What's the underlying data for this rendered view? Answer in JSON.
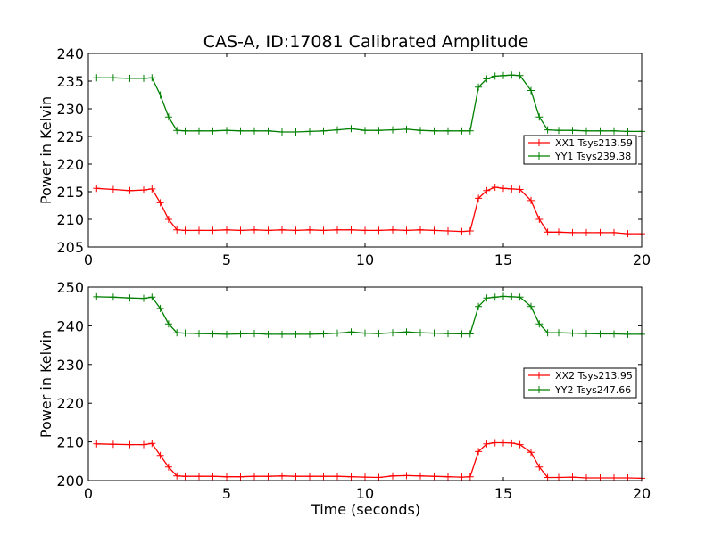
{
  "chart_data": [
    {
      "type": "line",
      "title": "CAS-A, ID:17081 Calibrated Amplitude",
      "xlabel": "",
      "ylabel": "Power in Kelvin",
      "xlim": [
        0,
        20
      ],
      "ylim": [
        205,
        240
      ],
      "xticks": [
        "0",
        "5",
        "10",
        "15",
        "20"
      ],
      "yticks": [
        "205",
        "210",
        "215",
        "220",
        "225",
        "230",
        "235",
        "240"
      ],
      "x": [
        0.3,
        0.9,
        1.5,
        2.0,
        2.3,
        2.6,
        2.9,
        3.2,
        3.5,
        4.0,
        4.5,
        5.0,
        5.5,
        6.0,
        6.5,
        7.0,
        7.5,
        8.0,
        8.5,
        9.0,
        9.5,
        10.0,
        10.5,
        11.0,
        11.5,
        12.0,
        12.5,
        13.0,
        13.5,
        13.8,
        14.1,
        14.4,
        14.7,
        15.0,
        15.3,
        15.6,
        16.0,
        16.3,
        16.6,
        17.0,
        17.5,
        18.0,
        18.5,
        19.0,
        19.5,
        20.0
      ],
      "series": [
        {
          "name": "XX1 Tsys213.59",
          "color": "#ff0000",
          "values": [
            215.6,
            215.4,
            215.2,
            215.3,
            215.5,
            213.0,
            210.0,
            208.1,
            208.0,
            208.0,
            208.0,
            208.1,
            208.0,
            208.1,
            208.0,
            208.1,
            208.0,
            208.1,
            208.0,
            208.1,
            208.1,
            208.0,
            208.0,
            208.1,
            208.0,
            208.1,
            208.0,
            207.9,
            207.8,
            207.9,
            213.8,
            215.2,
            215.8,
            215.6,
            215.5,
            215.4,
            213.4,
            210.0,
            207.7,
            207.7,
            207.6,
            207.6,
            207.6,
            207.6,
            207.4,
            207.4
          ]
        },
        {
          "name": "YY1 Tsys239.38",
          "color": "#008000",
          "values": [
            235.6,
            235.6,
            235.5,
            235.5,
            235.6,
            232.5,
            228.5,
            226.1,
            226.0,
            226.0,
            226.0,
            226.1,
            226.0,
            226.0,
            226.0,
            225.8,
            225.8,
            225.9,
            226.0,
            226.2,
            226.4,
            226.1,
            226.1,
            226.2,
            226.3,
            226.1,
            226.0,
            226.0,
            226.0,
            226.0,
            233.9,
            235.4,
            235.9,
            236.0,
            236.1,
            236.0,
            233.3,
            228.5,
            226.2,
            226.1,
            226.1,
            226.0,
            226.0,
            226.0,
            225.9,
            225.9
          ]
        }
      ],
      "legend": "center-right",
      "grid": false
    },
    {
      "type": "line",
      "title": "",
      "xlabel": "Time (seconds)",
      "ylabel": "Power in Kelvin",
      "xlim": [
        0,
        20
      ],
      "ylim": [
        200,
        250
      ],
      "xticks": [
        "0",
        "5",
        "10",
        "15",
        "20"
      ],
      "yticks": [
        "200",
        "210",
        "220",
        "230",
        "240",
        "250"
      ],
      "x": [
        0.3,
        0.9,
        1.5,
        2.0,
        2.3,
        2.6,
        2.9,
        3.2,
        3.5,
        4.0,
        4.5,
        5.0,
        5.5,
        6.0,
        6.5,
        7.0,
        7.5,
        8.0,
        8.5,
        9.0,
        9.5,
        10.0,
        10.5,
        11.0,
        11.5,
        12.0,
        12.5,
        13.0,
        13.5,
        13.8,
        14.1,
        14.4,
        14.7,
        15.0,
        15.3,
        15.6,
        16.0,
        16.3,
        16.6,
        17.0,
        17.5,
        18.0,
        18.5,
        19.0,
        19.5,
        20.0
      ],
      "series": [
        {
          "name": "XX2 Tsys213.95",
          "color": "#ff0000",
          "values": [
            209.5,
            209.4,
            209.3,
            209.3,
            209.6,
            206.5,
            203.5,
            201.2,
            201.1,
            201.1,
            201.1,
            201.0,
            201.0,
            201.1,
            201.1,
            201.2,
            201.1,
            201.1,
            201.1,
            201.1,
            201.0,
            200.9,
            200.8,
            201.2,
            201.3,
            201.2,
            201.1,
            201.0,
            200.9,
            201.0,
            207.5,
            209.5,
            209.8,
            209.8,
            209.7,
            209.3,
            207.3,
            203.5,
            200.8,
            200.8,
            200.9,
            200.7,
            200.7,
            200.7,
            200.7,
            200.6
          ]
        },
        {
          "name": "YY2 Tsys247.66",
          "color": "#008000",
          "values": [
            247.5,
            247.4,
            247.2,
            247.1,
            247.4,
            244.5,
            240.5,
            238.2,
            238.1,
            238.0,
            237.9,
            237.8,
            237.9,
            238.0,
            237.8,
            237.8,
            237.8,
            237.8,
            237.9,
            238.1,
            238.4,
            238.1,
            238.0,
            238.2,
            238.4,
            238.2,
            238.1,
            238.0,
            237.9,
            237.9,
            245.0,
            247.2,
            247.4,
            247.6,
            247.5,
            247.4,
            245.0,
            240.5,
            238.2,
            238.2,
            238.1,
            238.0,
            237.9,
            237.9,
            237.8,
            237.8
          ]
        }
      ],
      "legend": "center-right",
      "grid": false
    }
  ]
}
